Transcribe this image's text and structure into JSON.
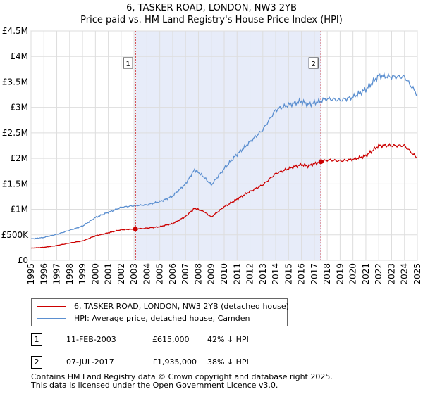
{
  "title": "6, TASKER ROAD, LONDON, NW3 2YB",
  "subtitle": "Price paid vs. HM Land Registry's House Price Index (HPI)",
  "chart_data": {
    "type": "line",
    "xlim": [
      1995,
      2025
    ],
    "ylim": [
      0,
      4500000
    ],
    "x_ticks": [
      "1995",
      "1996",
      "1997",
      "1998",
      "1999",
      "2000",
      "2001",
      "2002",
      "2003",
      "2004",
      "2005",
      "2006",
      "2007",
      "2008",
      "2009",
      "2010",
      "2011",
      "2012",
      "2013",
      "2014",
      "2015",
      "2016",
      "2017",
      "2018",
      "2019",
      "2020",
      "2021",
      "2022",
      "2023",
      "2024",
      "2025"
    ],
    "y_ticks": [
      {
        "value": 0,
        "label": "£0"
      },
      {
        "value": 500000,
        "label": "£500K"
      },
      {
        "value": 1000000,
        "label": "£1M"
      },
      {
        "value": 1500000,
        "label": "£1.5M"
      },
      {
        "value": 2000000,
        "label": "£2M"
      },
      {
        "value": 2500000,
        "label": "£2.5M"
      },
      {
        "value": 3000000,
        "label": "£3M"
      },
      {
        "value": 3500000,
        "label": "£3.5M"
      },
      {
        "value": 4000000,
        "label": "£4M"
      },
      {
        "value": 4500000,
        "label": "£4.5M"
      }
    ],
    "shaded_period": [
      2003.11,
      2017.51
    ],
    "series": [
      {
        "name": "6, TASKER ROAD, LONDON, NW3 2YB (detached house)",
        "color": "#cc0000",
        "points": [
          [
            1995.0,
            240000
          ],
          [
            1996.0,
            255000
          ],
          [
            1997.0,
            290000
          ],
          [
            1998.0,
            340000
          ],
          [
            1999.0,
            380000
          ],
          [
            2000.0,
            480000
          ],
          [
            2001.0,
            540000
          ],
          [
            2002.0,
            600000
          ],
          [
            2003.11,
            615000
          ],
          [
            2004.0,
            630000
          ],
          [
            2005.0,
            660000
          ],
          [
            2006.0,
            720000
          ],
          [
            2007.0,
            860000
          ],
          [
            2007.7,
            1020000
          ],
          [
            2008.4,
            960000
          ],
          [
            2009.0,
            850000
          ],
          [
            2010.0,
            1050000
          ],
          [
            2011.0,
            1200000
          ],
          [
            2012.0,
            1350000
          ],
          [
            2013.0,
            1480000
          ],
          [
            2014.0,
            1700000
          ],
          [
            2015.0,
            1800000
          ],
          [
            2016.0,
            1880000
          ],
          [
            2016.5,
            1850000
          ],
          [
            2017.51,
            1935000
          ],
          [
            2018.0,
            1970000
          ],
          [
            2019.0,
            1950000
          ],
          [
            2020.0,
            1980000
          ],
          [
            2021.0,
            2050000
          ],
          [
            2022.0,
            2250000
          ],
          [
            2023.0,
            2250000
          ],
          [
            2024.0,
            2250000
          ],
          [
            2025.0,
            2000000
          ]
        ]
      },
      {
        "name": "HPI: Average price, detached house, Camden",
        "color": "#5b8fd0",
        "points": [
          [
            1995.0,
            420000
          ],
          [
            1996.0,
            450000
          ],
          [
            1997.0,
            510000
          ],
          [
            1998.0,
            590000
          ],
          [
            1999.0,
            670000
          ],
          [
            2000.0,
            840000
          ],
          [
            2001.0,
            940000
          ],
          [
            2002.0,
            1040000
          ],
          [
            2003.0,
            1070000
          ],
          [
            2004.0,
            1090000
          ],
          [
            2005.0,
            1150000
          ],
          [
            2006.0,
            1260000
          ],
          [
            2007.0,
            1500000
          ],
          [
            2007.7,
            1780000
          ],
          [
            2008.4,
            1640000
          ],
          [
            2009.0,
            1480000
          ],
          [
            2010.0,
            1800000
          ],
          [
            2011.0,
            2080000
          ],
          [
            2012.0,
            2320000
          ],
          [
            2013.0,
            2560000
          ],
          [
            2014.0,
            2950000
          ],
          [
            2015.0,
            3050000
          ],
          [
            2016.0,
            3120000
          ],
          [
            2016.5,
            3050000
          ],
          [
            2017.51,
            3130000
          ],
          [
            2018.0,
            3170000
          ],
          [
            2019.0,
            3140000
          ],
          [
            2020.0,
            3200000
          ],
          [
            2021.0,
            3350000
          ],
          [
            2022.0,
            3620000
          ],
          [
            2023.0,
            3600000
          ],
          [
            2024.0,
            3600000
          ],
          [
            2025.0,
            3250000
          ]
        ]
      }
    ],
    "events": [
      {
        "label": "1",
        "x": 2003.11,
        "y": 615000
      },
      {
        "label": "2",
        "x": 2017.51,
        "y": 1935000
      }
    ]
  },
  "legend": {
    "items": [
      {
        "label": "6, TASKER ROAD, LONDON, NW3 2YB (detached house)",
        "color": "#cc0000"
      },
      {
        "label": "HPI: Average price, detached house, Camden",
        "color": "#5b8fd0"
      }
    ]
  },
  "transactions": [
    {
      "num": "1",
      "date": "11-FEB-2003",
      "price": "£615,000",
      "hpi": "42% ↓ HPI"
    },
    {
      "num": "2",
      "date": "07-JUL-2017",
      "price": "£1,935,000",
      "hpi": "38% ↓ HPI"
    }
  ],
  "footer": {
    "line1": "Contains HM Land Registry data © Crown copyright and database right 2025.",
    "line2": "This data is licensed under the Open Government Licence v3.0."
  }
}
